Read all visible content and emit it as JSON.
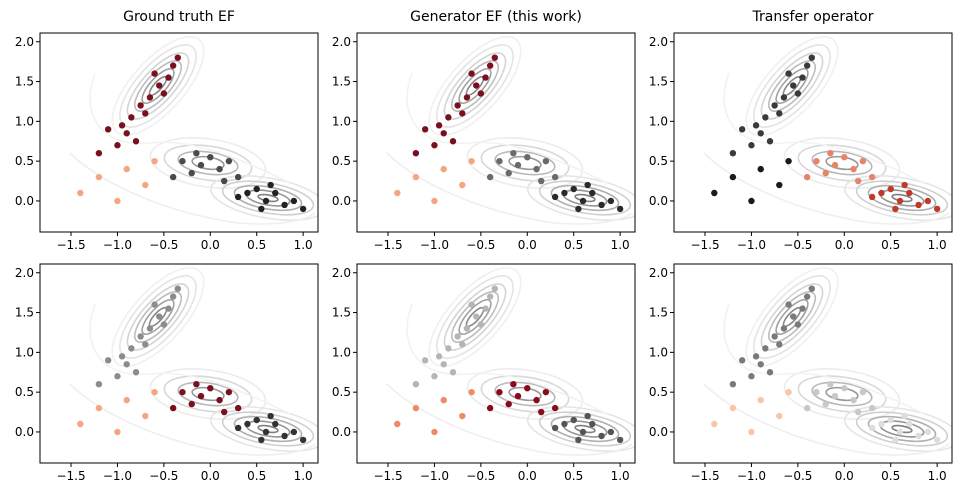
{
  "chart_data": [
    {
      "type": "scatter",
      "title": "Ground truth EF",
      "xlim": [
        -1.834,
        1.16
      ],
      "ylim": [
        -0.39,
        2.11
      ],
      "xticks": [
        {
          "value": -1.5,
          "label": "−1.5"
        },
        {
          "value": -1.0,
          "label": "−1.0"
        },
        {
          "value": -0.5,
          "label": "−0.5"
        },
        {
          "value": 0.0,
          "label": "0.0"
        },
        {
          "value": 0.5,
          "label": "0.5"
        },
        {
          "value": 1.0,
          "label": "1.0"
        }
      ],
      "yticks": [
        {
          "value": 0.0,
          "label": "0.0"
        },
        {
          "value": 0.5,
          "label": "0.5"
        },
        {
          "value": 1.0,
          "label": "1.0"
        },
        {
          "value": 1.5,
          "label": "1.5"
        },
        {
          "value": 2.0,
          "label": "2.0"
        }
      ],
      "series": [
        {
          "color": "#7a0f1f",
          "x": [
            -0.95,
            -0.85,
            -0.75,
            -0.65,
            -0.55,
            -0.45,
            -0.4,
            -0.6,
            -0.7,
            -0.9,
            -1.1,
            -1.0,
            -0.8,
            -0.5,
            -0.35,
            -1.2
          ],
          "y": [
            0.95,
            1.05,
            1.2,
            1.3,
            1.45,
            1.55,
            1.7,
            1.6,
            1.1,
            0.85,
            0.9,
            0.7,
            0.75,
            1.35,
            1.8,
            0.6
          ]
        },
        {
          "color": "#4a4a4a",
          "x": [
            -0.3,
            -0.1,
            0.1,
            0.0,
            -0.2,
            0.2,
            -0.4,
            0.3,
            -0.15,
            0.15
          ],
          "y": [
            0.5,
            0.45,
            0.4,
            0.55,
            0.35,
            0.5,
            0.3,
            0.3,
            0.6,
            0.25
          ]
        },
        {
          "color": "#222222",
          "x": [
            0.4,
            0.6,
            0.8,
            0.5,
            0.7,
            0.9,
            0.3,
            0.55,
            1.0,
            0.65
          ],
          "y": [
            0.1,
            0.0,
            -0.05,
            0.15,
            0.1,
            0.0,
            0.05,
            -0.1,
            -0.1,
            0.2
          ]
        },
        {
          "color": "#f4a582",
          "x": [
            -1.2,
            -0.9,
            -1.4,
            -0.7,
            -1.0,
            -0.6
          ],
          "y": [
            0.3,
            0.4,
            0.1,
            0.2,
            0.0,
            0.5
          ]
        }
      ]
    },
    {
      "type": "scatter",
      "title": "Generator EF (this work)",
      "xlim": [
        -1.834,
        1.16
      ],
      "ylim": [
        -0.39,
        2.11
      ],
      "xticks": [
        {
          "value": -1.5,
          "label": "−1.5"
        },
        {
          "value": -1.0,
          "label": "−1.0"
        },
        {
          "value": -0.5,
          "label": "−0.5"
        },
        {
          "value": 0.0,
          "label": "0.0"
        },
        {
          "value": 0.5,
          "label": "0.5"
        },
        {
          "value": 1.0,
          "label": "1.0"
        }
      ],
      "yticks": [
        {
          "value": 0.0,
          "label": "0.0"
        },
        {
          "value": 0.5,
          "label": "0.5"
        },
        {
          "value": 1.0,
          "label": "1.0"
        },
        {
          "value": 1.5,
          "label": "1.5"
        },
        {
          "value": 2.0,
          "label": "2.0"
        }
      ],
      "series": [
        {
          "color": "#7a0f1f",
          "x": [
            -0.95,
            -0.85,
            -0.75,
            -0.65,
            -0.55,
            -0.45,
            -0.4,
            -0.6,
            -0.7,
            -0.9,
            -1.1,
            -1.0,
            -0.8,
            -0.5,
            -0.35,
            -1.2
          ],
          "y": [
            0.95,
            1.05,
            1.2,
            1.3,
            1.45,
            1.55,
            1.7,
            1.6,
            1.1,
            0.85,
            0.9,
            0.7,
            0.75,
            1.35,
            1.8,
            0.6
          ]
        },
        {
          "color": "#6a6a6a",
          "x": [
            -0.3,
            -0.1,
            0.1,
            0.0,
            -0.2,
            0.2,
            -0.4,
            0.3,
            -0.15,
            0.15
          ],
          "y": [
            0.5,
            0.45,
            0.4,
            0.55,
            0.35,
            0.5,
            0.3,
            0.3,
            0.6,
            0.25
          ]
        },
        {
          "color": "#2a2a2a",
          "x": [
            0.4,
            0.6,
            0.8,
            0.5,
            0.7,
            0.9,
            0.3,
            0.55,
            1.0,
            0.65
          ],
          "y": [
            0.1,
            0.0,
            -0.05,
            0.15,
            0.1,
            0.0,
            0.05,
            -0.1,
            -0.1,
            0.2
          ]
        },
        {
          "color": "#f4a582",
          "x": [
            -1.2,
            -0.9,
            -1.4,
            -0.7,
            -1.0,
            -0.6
          ],
          "y": [
            0.3,
            0.4,
            0.1,
            0.2,
            0.0,
            0.5
          ]
        }
      ]
    },
    {
      "type": "scatter",
      "title": "Transfer operator",
      "xlim": [
        -1.834,
        1.16
      ],
      "ylim": [
        -0.39,
        2.11
      ],
      "xticks": [
        {
          "value": -1.5,
          "label": "−1.5"
        },
        {
          "value": -1.0,
          "label": "−1.0"
        },
        {
          "value": -0.5,
          "label": "−0.5"
        },
        {
          "value": 0.0,
          "label": "0.0"
        },
        {
          "value": 0.5,
          "label": "0.5"
        },
        {
          "value": 1.0,
          "label": "1.0"
        }
      ],
      "yticks": [
        {
          "value": 0.0,
          "label": "0.0"
        },
        {
          "value": 0.5,
          "label": "0.5"
        },
        {
          "value": 1.0,
          "label": "1.0"
        },
        {
          "value": 1.5,
          "label": "1.5"
        },
        {
          "value": 2.0,
          "label": "2.0"
        }
      ],
      "series": [
        {
          "color": "#3a3a3a",
          "x": [
            -0.95,
            -0.85,
            -0.75,
            -0.65,
            -0.55,
            -0.45,
            -0.4,
            -0.6,
            -0.7,
            -0.9,
            -1.1,
            -1.0,
            -0.8,
            -0.5,
            -0.35,
            -1.2
          ],
          "y": [
            0.95,
            1.05,
            1.2,
            1.3,
            1.45,
            1.55,
            1.7,
            1.6,
            1.1,
            0.85,
            0.9,
            0.7,
            0.75,
            1.35,
            1.8,
            0.6
          ]
        },
        {
          "color": "#e8836a",
          "x": [
            -0.3,
            -0.1,
            0.1,
            0.0,
            -0.2,
            0.2,
            -0.4,
            0.3,
            -0.15,
            0.15
          ],
          "y": [
            0.5,
            0.45,
            0.4,
            0.55,
            0.35,
            0.5,
            0.3,
            0.3,
            0.6,
            0.25
          ]
        },
        {
          "color": "#c0392b",
          "x": [
            0.4,
            0.6,
            0.8,
            0.5,
            0.7,
            0.9,
            0.3,
            0.55,
            1.0,
            0.65
          ],
          "y": [
            0.1,
            0.0,
            -0.05,
            0.15,
            0.1,
            0.0,
            0.05,
            -0.1,
            -0.1,
            0.2
          ]
        },
        {
          "color": "#1a1a1a",
          "x": [
            -1.2,
            -0.9,
            -1.4,
            -0.7,
            -1.0,
            -0.6
          ],
          "y": [
            0.3,
            0.4,
            0.1,
            0.2,
            0.0,
            0.5
          ]
        }
      ]
    },
    {
      "type": "scatter",
      "xlim": [
        -1.834,
        1.16
      ],
      "ylim": [
        -0.39,
        2.11
      ],
      "xticks": [
        {
          "value": -1.5,
          "label": "−1.5"
        },
        {
          "value": -1.0,
          "label": "−1.0"
        },
        {
          "value": -0.5,
          "label": "−0.5"
        },
        {
          "value": 0.0,
          "label": "0.0"
        },
        {
          "value": 0.5,
          "label": "0.5"
        },
        {
          "value": 1.0,
          "label": "1.0"
        }
      ],
      "yticks": [
        {
          "value": 0.0,
          "label": "0.0"
        },
        {
          "value": 0.5,
          "label": "0.5"
        },
        {
          "value": 1.0,
          "label": "1.0"
        },
        {
          "value": 1.5,
          "label": "1.5"
        },
        {
          "value": 2.0,
          "label": "2.0"
        }
      ],
      "series": [
        {
          "color": "#8c8c8c",
          "x": [
            -0.95,
            -0.85,
            -0.75,
            -0.65,
            -0.55,
            -0.45,
            -0.4,
            -0.6,
            -0.7,
            -0.9,
            -1.1,
            -1.0,
            -0.8,
            -0.5,
            -0.35,
            -1.2
          ],
          "y": [
            0.95,
            1.05,
            1.2,
            1.3,
            1.45,
            1.55,
            1.7,
            1.6,
            1.1,
            0.85,
            0.9,
            0.7,
            0.75,
            1.35,
            1.8,
            0.6
          ]
        },
        {
          "color": "#7a0f1f",
          "x": [
            -0.3,
            -0.1,
            0.1,
            0.0,
            -0.2,
            0.2,
            -0.4,
            0.3,
            -0.15,
            0.15
          ],
          "y": [
            0.5,
            0.45,
            0.4,
            0.55,
            0.35,
            0.5,
            0.3,
            0.3,
            0.6,
            0.25
          ]
        },
        {
          "color": "#333333",
          "x": [
            0.4,
            0.6,
            0.8,
            0.5,
            0.7,
            0.9,
            0.3,
            0.55,
            1.0,
            0.65
          ],
          "y": [
            0.1,
            0.0,
            -0.05,
            0.15,
            0.1,
            0.0,
            0.05,
            -0.1,
            -0.1,
            0.2
          ]
        },
        {
          "color": "#f4a582",
          "x": [
            -1.2,
            -0.9,
            -1.4,
            -0.7,
            -1.0,
            -0.6
          ],
          "y": [
            0.3,
            0.4,
            0.1,
            0.2,
            0.0,
            0.5
          ]
        }
      ]
    },
    {
      "type": "scatter",
      "xlim": [
        -1.834,
        1.16
      ],
      "ylim": [
        -0.39,
        2.11
      ],
      "xticks": [
        {
          "value": -1.5,
          "label": "−1.5"
        },
        {
          "value": -1.0,
          "label": "−1.0"
        },
        {
          "value": -0.5,
          "label": "−0.5"
        },
        {
          "value": 0.0,
          "label": "0.0"
        },
        {
          "value": 0.5,
          "label": "0.5"
        },
        {
          "value": 1.0,
          "label": "1.0"
        }
      ],
      "yticks": [
        {
          "value": 0.0,
          "label": "0.0"
        },
        {
          "value": 0.5,
          "label": "0.5"
        },
        {
          "value": 1.0,
          "label": "1.0"
        },
        {
          "value": 1.5,
          "label": "1.5"
        },
        {
          "value": 2.0,
          "label": "2.0"
        }
      ],
      "series": [
        {
          "color": "#b5b5b5",
          "x": [
            -0.95,
            -0.85,
            -0.75,
            -0.65,
            -0.55,
            -0.45,
            -0.4,
            -0.6,
            -0.7,
            -0.9,
            -1.1,
            -1.0,
            -0.8,
            -0.5,
            -0.35,
            -1.2
          ],
          "y": [
            0.95,
            1.05,
            1.2,
            1.3,
            1.45,
            1.55,
            1.7,
            1.6,
            1.1,
            0.85,
            0.9,
            0.7,
            0.75,
            1.35,
            1.8,
            0.6
          ]
        },
        {
          "color": "#8b0a1a",
          "x": [
            -0.3,
            -0.1,
            0.1,
            0.0,
            -0.2,
            0.2,
            -0.4,
            0.3,
            -0.15,
            0.15
          ],
          "y": [
            0.5,
            0.45,
            0.4,
            0.55,
            0.35,
            0.5,
            0.3,
            0.3,
            0.6,
            0.25
          ]
        },
        {
          "color": "#555555",
          "x": [
            0.4,
            0.6,
            0.8,
            0.5,
            0.7,
            0.9,
            0.3,
            0.55,
            1.0,
            0.65
          ],
          "y": [
            0.1,
            0.0,
            -0.05,
            0.15,
            0.1,
            0.0,
            0.05,
            -0.1,
            -0.1,
            0.2
          ]
        },
        {
          "color": "#ef8a62",
          "x": [
            -1.2,
            -0.9,
            -1.4,
            -0.7,
            -1.0,
            -0.6
          ],
          "y": [
            0.3,
            0.4,
            0.1,
            0.2,
            0.0,
            0.5
          ]
        }
      ]
    },
    {
      "type": "scatter",
      "xlim": [
        -1.834,
        1.16
      ],
      "ylim": [
        -0.39,
        2.11
      ],
      "xticks": [
        {
          "value": -1.5,
          "label": "−1.5"
        },
        {
          "value": -1.0,
          "label": "−1.0"
        },
        {
          "value": -0.5,
          "label": "−0.5"
        },
        {
          "value": 0.0,
          "label": "0.0"
        },
        {
          "value": 0.5,
          "label": "0.5"
        },
        {
          "value": 1.0,
          "label": "1.0"
        }
      ],
      "yticks": [
        {
          "value": 0.0,
          "label": "0.0"
        },
        {
          "value": 0.5,
          "label": "0.5"
        },
        {
          "value": 1.0,
          "label": "1.0"
        },
        {
          "value": 1.5,
          "label": "1.5"
        },
        {
          "value": 2.0,
          "label": "2.0"
        }
      ],
      "series": [
        {
          "color": "#7a7a7a",
          "x": [
            -0.95,
            -0.85,
            -0.75,
            -0.65,
            -0.55,
            -0.45,
            -0.4,
            -0.6,
            -0.7,
            -0.9,
            -1.1,
            -1.0,
            -0.8,
            -0.5,
            -0.35,
            -1.2
          ],
          "y": [
            0.95,
            1.05,
            1.2,
            1.3,
            1.45,
            1.55,
            1.7,
            1.6,
            1.1,
            0.85,
            0.9,
            0.7,
            0.75,
            1.35,
            1.8,
            0.6
          ]
        },
        {
          "color": "#c8c8c8",
          "x": [
            -0.3,
            -0.1,
            0.1,
            0.0,
            -0.2,
            0.2,
            -0.4,
            0.3,
            -0.15,
            0.15
          ],
          "y": [
            0.5,
            0.45,
            0.4,
            0.55,
            0.35,
            0.5,
            0.3,
            0.3,
            0.6,
            0.25
          ]
        },
        {
          "color": "#dddddd",
          "x": [
            0.4,
            0.6,
            0.8,
            0.5,
            0.7,
            0.9,
            0.3,
            0.55,
            1.0,
            0.65
          ],
          "y": [
            0.1,
            0.0,
            -0.05,
            0.15,
            0.1,
            0.0,
            0.05,
            -0.1,
            -0.1,
            0.2
          ]
        },
        {
          "color": "#fbc4a8",
          "x": [
            -1.2,
            -0.9,
            -1.4,
            -0.7,
            -1.0,
            -0.6
          ],
          "y": [
            0.3,
            0.4,
            0.1,
            0.2,
            0.0,
            0.5
          ]
        }
      ]
    }
  ]
}
